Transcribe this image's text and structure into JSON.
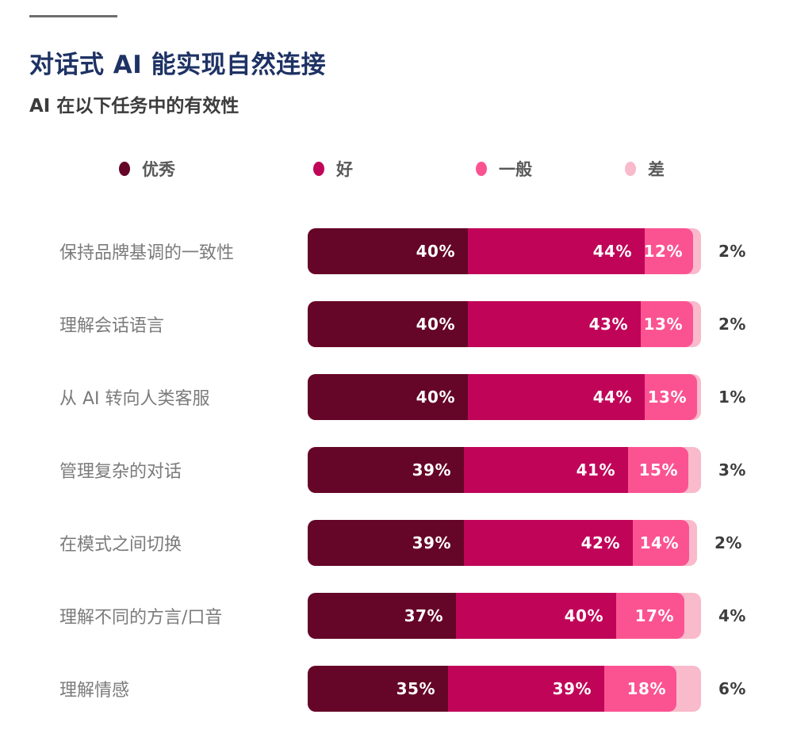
{
  "header": {
    "title": "对话式 AI 能实现自然连接",
    "subtitle": "AI 在以下任务中的有效性"
  },
  "colors": {
    "title": "#1e3264",
    "excellent": "#650527",
    "good": "#c00559",
    "fair": "#fb5391",
    "poor": "#f9bacb"
  },
  "legend": {
    "items": [
      {
        "label": "优秀",
        "color": "#650527"
      },
      {
        "label": "好",
        "color": "#c00559"
      },
      {
        "label": "一般",
        "color": "#fb5391"
      },
      {
        "label": "差",
        "color": "#f9bacb"
      }
    ]
  },
  "rows": [
    {
      "label": "保持品牌基调的一致性",
      "v1": "40%",
      "v2": "44%",
      "v3": "12%",
      "v4": "2%"
    },
    {
      "label": "理解会话语言",
      "v1": "40%",
      "v2": "43%",
      "v3": "13%",
      "v4": "2%"
    },
    {
      "label": "从 AI 转向人类客服",
      "v1": "40%",
      "v2": "44%",
      "v3": "13%",
      "v4": "1%"
    },
    {
      "label": "管理复杂的对话",
      "v1": "39%",
      "v2": "41%",
      "v3": "15%",
      "v4": "3%"
    },
    {
      "label": "在模式之间切换",
      "v1": "39%",
      "v2": "42%",
      "v3": "14%",
      "v4": "2%"
    },
    {
      "label": "理解不同的方言/口音",
      "v1": "37%",
      "v2": "40%",
      "v3": "17%",
      "v4": "4%"
    },
    {
      "label": "理解情感",
      "v1": "35%",
      "v2": "39%",
      "v3": "18%",
      "v4": "6%"
    }
  ],
  "chart_data": {
    "type": "bar",
    "orientation": "horizontal",
    "stacked": true,
    "title": "对话式 AI 能实现自然连接",
    "subtitle": "AI 在以下任务中的有效性",
    "value_unit": "%",
    "legend_position": "top",
    "categories": [
      "保持品牌基调的一致性",
      "理解会话语言",
      "从 AI 转向人类客服",
      "管理复杂的对话",
      "在模式之间切换",
      "理解不同的方言/口音",
      "理解情感"
    ],
    "series": [
      {
        "name": "优秀",
        "color": "#650527",
        "values": [
          40,
          40,
          40,
          39,
          39,
          37,
          35
        ]
      },
      {
        "name": "好",
        "color": "#c00559",
        "values": [
          44,
          43,
          44,
          41,
          42,
          40,
          39
        ]
      },
      {
        "name": "一般",
        "color": "#fb5391",
        "values": [
          12,
          13,
          13,
          15,
          14,
          17,
          18
        ]
      },
      {
        "name": "差",
        "color": "#f9bacb",
        "values": [
          2,
          2,
          1,
          3,
          2,
          4,
          6
        ]
      }
    ]
  }
}
